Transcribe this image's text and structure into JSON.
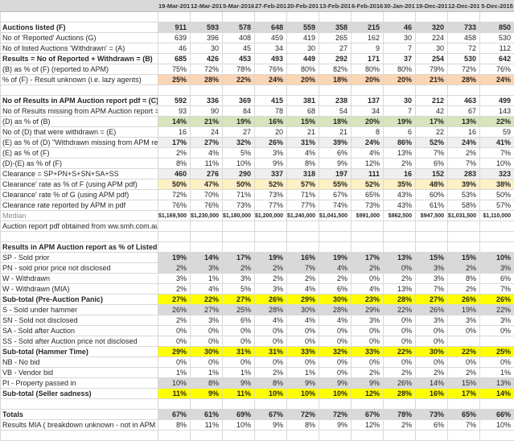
{
  "palette": {
    "header_gray": "#d9d9d9",
    "row_gray": "#d9d9d9",
    "orange_highlight": "#fcd5b4",
    "green_highlight": "#d7e4bc",
    "light_gray_highlight": "#efefef",
    "pale_yellow_highlight": "#fdf0c5",
    "bright_yellow_highlight": "#ffff00",
    "gridline": "#d8d8d8",
    "text": "#262626"
  },
  "table": {
    "corner_label": "",
    "columns": [
      "19-Mar-2016",
      "12-Mar-2016",
      "5-Mar-2016",
      "27-Feb-2016",
      "20-Feb-2016",
      "13-Feb-2016",
      "6-Feb-2016",
      "30-Jan-2016",
      "19-Dec-2015",
      "12-Dec-2015",
      "5-Dec-2015"
    ],
    "rows": [
      {
        "label": "",
        "values": [
          "",
          "",
          "",
          "",
          "",
          "",
          "",
          "",
          "",
          "",
          ""
        ],
        "highlight": "none"
      },
      {
        "label": "Auctions listed (F)",
        "values": [
          "911",
          "593",
          "578",
          "648",
          "559",
          "358",
          "215",
          "46",
          "320",
          "733",
          "850"
        ],
        "highlight": "gray",
        "label_bold": true,
        "values_bold": true
      },
      {
        "label": "No of 'Reported' Auctions (G)",
        "values": [
          "639",
          "396",
          "408",
          "459",
          "419",
          "265",
          "162",
          "30",
          "224",
          "458",
          "530"
        ],
        "highlight": "none"
      },
      {
        "label": "No of listed Auctions 'Withdrawn' = (A)",
        "values": [
          "46",
          "30",
          "45",
          "34",
          "30",
          "27",
          "9",
          "7",
          "30",
          "72",
          "112"
        ],
        "highlight": "none"
      },
      {
        "label": "Results = No of Reported + Withdrawn = (B)",
        "values": [
          "685",
          "426",
          "453",
          "493",
          "449",
          "292",
          "171",
          "37",
          "254",
          "530",
          "642"
        ],
        "highlight": "none",
        "label_bold": true,
        "values_bold": true
      },
      {
        "label": "(B) as % of (F) (reported to APM)",
        "values": [
          "75%",
          "72%",
          "78%",
          "76%",
          "80%",
          "82%",
          "80%",
          "80%",
          "79%",
          "72%",
          "76%"
        ],
        "highlight": "none"
      },
      {
        "label": "% of (F) - Result unknown (i.e. lazy agents)",
        "values": [
          "25%",
          "28%",
          "22%",
          "24%",
          "20%",
          "18%",
          "20%",
          "20%",
          "21%",
          "28%",
          "24%"
        ],
        "highlight": "orange",
        "values_bold": true
      },
      {
        "label": "",
        "values": [
          "",
          "",
          "",
          "",
          "",
          "",
          "",
          "",
          "",
          "",
          ""
        ],
        "highlight": "none"
      },
      {
        "label": "No of Results in APM Auction report pdf = (C)",
        "values": [
          "592",
          "336",
          "369",
          "415",
          "381",
          "238",
          "137",
          "30",
          "212",
          "463",
          "499"
        ],
        "highlight": "none",
        "label_bold": true,
        "values_bold": true
      },
      {
        "label": "No of Results missing from APM Auction report = (D)",
        "values": [
          "93",
          "90",
          "84",
          "78",
          "68",
          "54",
          "34",
          "7",
          "42",
          "67",
          "143"
        ],
        "highlight": "none"
      },
      {
        "label": "(D) as % of (B)",
        "values": [
          "14%",
          "21%",
          "19%",
          "16%",
          "15%",
          "18%",
          "20%",
          "19%",
          "17%",
          "13%",
          "22%"
        ],
        "highlight": "green",
        "values_bold": true
      },
      {
        "label": "No of (D) that were withdrawn = (E)",
        "values": [
          "16",
          "24",
          "27",
          "20",
          "21",
          "21",
          "8",
          "6",
          "22",
          "16",
          "59"
        ],
        "highlight": "none"
      },
      {
        "label": "(E) as % of (D) \"Withdrawn missing from APM report\"",
        "values": [
          "17%",
          "27%",
          "32%",
          "26%",
          "31%",
          "39%",
          "24%",
          "86%",
          "52%",
          "24%",
          "41%"
        ],
        "highlight": "lightgray",
        "values_bold": true
      },
      {
        "label": "(E) as % of (F)",
        "values": [
          "2%",
          "4%",
          "5%",
          "3%",
          "4%",
          "6%",
          "4%",
          "13%",
          "7%",
          "2%",
          "7%"
        ],
        "highlight": "none"
      },
      {
        "label": "(D)-(E) as % of (F)",
        "values": [
          "8%",
          "11%",
          "10%",
          "9%",
          "8%",
          "9%",
          "12%",
          "2%",
          "6%",
          "7%",
          "10%"
        ],
        "highlight": "none"
      },
      {
        "label": "Clearance = SP+PN+S+SN+SA+SS",
        "values": [
          "460",
          "276",
          "290",
          "337",
          "318",
          "197",
          "111",
          "16",
          "152",
          "283",
          "323"
        ],
        "highlight": "lightgray",
        "values_bold": true
      },
      {
        "label": "Clearance' rate as % of F (using APM pdf)",
        "values": [
          "50%",
          "47%",
          "50%",
          "52%",
          "57%",
          "55%",
          "52%",
          "35%",
          "48%",
          "39%",
          "38%"
        ],
        "highlight": "paleyellow",
        "values_bold": true
      },
      {
        "label": "Clearance' rate % of G (using APM pdf)",
        "values": [
          "72%",
          "70%",
          "71%",
          "73%",
          "71%",
          "67%",
          "65%",
          "43%",
          "60%",
          "53%",
          "50%"
        ],
        "highlight": "none"
      },
      {
        "label": "Clearance rate reported by APM in pdf",
        "values": [
          "76%",
          "76%",
          "73%",
          "77%",
          "77%",
          "74%",
          "73%",
          "43%",
          "61%",
          "58%",
          "57%"
        ],
        "highlight": "none"
      },
      {
        "label": "Median",
        "values": [
          "$1,169,500",
          "$1,230,000",
          "$1,180,000",
          "$1,200,000",
          "$1,240,000",
          "$1,041,500",
          "$991,000",
          "$862,500",
          "$947,500",
          "$1,031,500",
          "$1,110,000"
        ],
        "highlight": "none",
        "label_small": true,
        "values_small": true,
        "values_bold": true
      },
      {
        "label": "Auction report pdf obtained from ww.smh.com.au",
        "values": [
          "",
          "",
          "",
          "",
          "",
          "",
          "",
          "",
          "",
          "",
          ""
        ],
        "highlight": "none"
      },
      {
        "label": "",
        "values": [
          "",
          "",
          "",
          "",
          "",
          "",
          "",
          "",
          "",
          "",
          ""
        ],
        "highlight": "none"
      },
      {
        "label": "Results in APM Auction report as % of Listed (F)",
        "values": [
          "",
          "",
          "",
          "",
          "",
          "",
          "",
          "",
          "",
          "",
          ""
        ],
        "highlight": "none",
        "label_bold": true
      },
      {
        "label": "SP - Sold prior",
        "values": [
          "19%",
          "14%",
          "17%",
          "19%",
          "16%",
          "19%",
          "17%",
          "13%",
          "15%",
          "15%",
          "10%"
        ],
        "highlight": "gray",
        "values_bold": true
      },
      {
        "label": "PN - sold prior price not disclosed",
        "values": [
          "2%",
          "3%",
          "2%",
          "2%",
          "7%",
          "4%",
          "2%",
          "0%",
          "3%",
          "2%",
          "3%"
        ],
        "highlight": "gray"
      },
      {
        "label": "W - Withdrawn",
        "values": [
          "3%",
          "1%",
          "3%",
          "2%",
          "2%",
          "2%",
          "0%",
          "2%",
          "3%",
          "8%",
          "6%"
        ],
        "highlight": "none"
      },
      {
        "label": "W - Withdrawn (MIA)",
        "values": [
          "2%",
          "4%",
          "5%",
          "3%",
          "4%",
          "6%",
          "4%",
          "13%",
          "7%",
          "2%",
          "7%"
        ],
        "highlight": "none"
      },
      {
        "label": "Sub-total (Pre-Auction Panic)",
        "values": [
          "27%",
          "22%",
          "27%",
          "26%",
          "29%",
          "30%",
          "23%",
          "28%",
          "27%",
          "26%",
          "26%"
        ],
        "highlight": "yellow",
        "label_bold": true,
        "label_align": "right",
        "values_bold": true
      },
      {
        "label": "S - Sold under hammer",
        "values": [
          "26%",
          "27%",
          "25%",
          "28%",
          "30%",
          "28%",
          "29%",
          "22%",
          "26%",
          "19%",
          "22%"
        ],
        "highlight": "gray"
      },
      {
        "label": "SN - Sold not disclosed",
        "values": [
          "2%",
          "3%",
          "6%",
          "4%",
          "4%",
          "4%",
          "3%",
          "0%",
          "3%",
          "3%",
          "3%"
        ],
        "highlight": "none"
      },
      {
        "label": "SA - Sold after Auction",
        "values": [
          "0%",
          "0%",
          "0%",
          "0%",
          "0%",
          "0%",
          "0%",
          "0%",
          "0%",
          "0%",
          "0%"
        ],
        "highlight": "none"
      },
      {
        "label": "SS - Sold after Auction price not disclosed",
        "values": [
          "0%",
          "0%",
          "0%",
          "0%",
          "0%",
          "0%",
          "0%",
          "0%",
          "0%",
          "",
          ""
        ],
        "highlight": "none"
      },
      {
        "label": "Sub-total (Hammer Time)",
        "values": [
          "29%",
          "30%",
          "31%",
          "31%",
          "33%",
          "32%",
          "33%",
          "22%",
          "30%",
          "22%",
          "25%"
        ],
        "highlight": "yellow",
        "label_bold": true,
        "label_align": "right",
        "values_bold": true
      },
      {
        "label": "NB - No bid",
        "values": [
          "0%",
          "0%",
          "0%",
          "0%",
          "0%",
          "0%",
          "0%",
          "0%",
          "0%",
          "0%",
          "0%"
        ],
        "highlight": "none"
      },
      {
        "label": "VB - Vendor bid",
        "values": [
          "1%",
          "1%",
          "1%",
          "2%",
          "1%",
          "0%",
          "2%",
          "2%",
          "2%",
          "2%",
          "1%"
        ],
        "highlight": "none"
      },
      {
        "label": "PI - Property passed in",
        "values": [
          "10%",
          "8%",
          "9%",
          "8%",
          "9%",
          "9%",
          "9%",
          "26%",
          "14%",
          "15%",
          "13%"
        ],
        "highlight": "gray"
      },
      {
        "label": "Sub-total (Seller sadness)",
        "values": [
          "11%",
          "9%",
          "11%",
          "10%",
          "10%",
          "10%",
          "12%",
          "28%",
          "16%",
          "17%",
          "14%"
        ],
        "highlight": "yellow",
        "label_bold": true,
        "label_align": "right",
        "values_bold": true
      },
      {
        "label": "",
        "values": [
          "",
          "",
          "",
          "",
          "",
          "",
          "",
          "",
          "",
          "",
          ""
        ],
        "highlight": "none"
      },
      {
        "label": "Totals",
        "values": [
          "67%",
          "61%",
          "69%",
          "67%",
          "72%",
          "72%",
          "67%",
          "78%",
          "73%",
          "65%",
          "66%"
        ],
        "highlight": "gray",
        "label_bold": true,
        "label_align": "right",
        "values_bold": true
      },
      {
        "label": "Results MIA ( breakdown unknown - not in APM pdf)",
        "values": [
          "8%",
          "11%",
          "10%",
          "9%",
          "8%",
          "9%",
          "12%",
          "2%",
          "6%",
          "7%",
          "10%"
        ],
        "highlight": "none"
      },
      {
        "label": "",
        "values": [
          "",
          "",
          "",
          "",
          "",
          "",
          "",
          "",
          "",
          "",
          ""
        ],
        "highlight": "none"
      }
    ]
  }
}
